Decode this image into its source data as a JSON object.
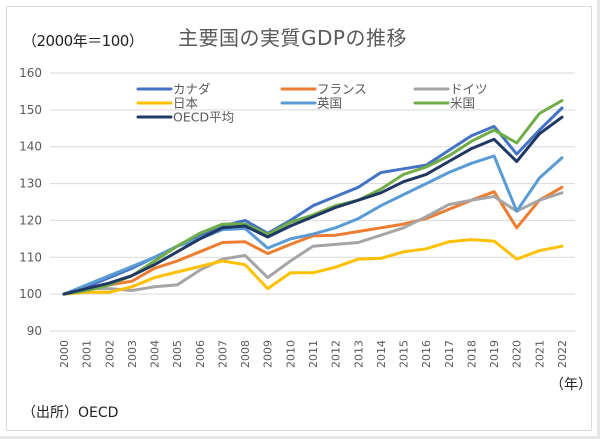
{
  "chart_data": {
    "type": "line",
    "title": "主要国の実質GDPの推移",
    "unit_label": "（2000年＝100）",
    "xlabel": "（年）",
    "ylabel": "",
    "source": "（出所）OECD",
    "ylim": [
      90,
      160
    ],
    "yticks": [
      90,
      100,
      110,
      120,
      130,
      140,
      150,
      160
    ],
    "grid": true,
    "legend_position": "top",
    "x": [
      "2000",
      "2001",
      "2002",
      "2003",
      "2004",
      "2005",
      "2006",
      "2007",
      "2008",
      "2009",
      "2010",
      "2011",
      "2012",
      "2013",
      "2014",
      "2015",
      "2016",
      "2017",
      "2018",
      "2019",
      "2020",
      "2021",
      "2022"
    ],
    "series": [
      {
        "name": "カナダ",
        "color": "#4472c4",
        "values": [
          100,
          102,
          104.5,
          107,
          110,
          113,
          116,
          118.5,
          120,
          116.5,
          120,
          124,
          126.5,
          129,
          133,
          134,
          135,
          139,
          143,
          145.5,
          138,
          144.5,
          150.5
        ]
      },
      {
        "name": "フランス",
        "color": "#ed7d31",
        "values": [
          100,
          101.5,
          102.5,
          103.5,
          107,
          109,
          111.5,
          114,
          114.2,
          111,
          113.5,
          115.8,
          116,
          117,
          118,
          119,
          120.5,
          123,
          125.5,
          127.8,
          118,
          125.5,
          129
        ]
      },
      {
        "name": "ドイツ",
        "color": "#a5a5a5",
        "values": [
          100,
          101.5,
          101.5,
          101,
          102,
          102.5,
          106.5,
          109.5,
          110.5,
          104.5,
          109,
          113,
          113.5,
          114,
          116,
          118,
          121,
          124.3,
          125.5,
          126.5,
          122.5,
          125.5,
          127.5
        ]
      },
      {
        "name": "日本",
        "color": "#ffc000",
        "values": [
          100,
          100.5,
          100.5,
          102,
          104.5,
          106,
          107.5,
          109,
          108,
          101.5,
          105.8,
          105.8,
          107.3,
          109.5,
          109.7,
          111.5,
          112.3,
          114.2,
          114.8,
          114.4,
          109.5,
          111.8,
          113
        ]
      },
      {
        "name": "英国",
        "color": "#5b9bd5",
        "values": [
          100,
          102.5,
          105,
          107.5,
          110,
          113,
          115,
          117.5,
          117.8,
          112.5,
          115,
          116.3,
          118,
          120.5,
          124,
          127,
          130,
          133,
          135.5,
          137.5,
          122.5,
          131.5,
          137
        ]
      },
      {
        "name": "米国",
        "color": "#70ad47",
        "values": [
          100,
          101,
          102.5,
          105,
          109,
          113,
          116.5,
          119,
          119,
          116.2,
          119.5,
          121.5,
          124,
          125.5,
          128.5,
          132.5,
          134.5,
          137.5,
          141.5,
          144.5,
          141,
          149,
          152.5
        ]
      },
      {
        "name": "OECD平均",
        "color": "#203864",
        "values": [
          100,
          101.5,
          103,
          105,
          108,
          111.5,
          115,
          118,
          118.5,
          115.5,
          118.5,
          121,
          123.5,
          125.5,
          127.5,
          130.5,
          132.5,
          136,
          139.5,
          142,
          136,
          143.5,
          148
        ]
      }
    ]
  }
}
